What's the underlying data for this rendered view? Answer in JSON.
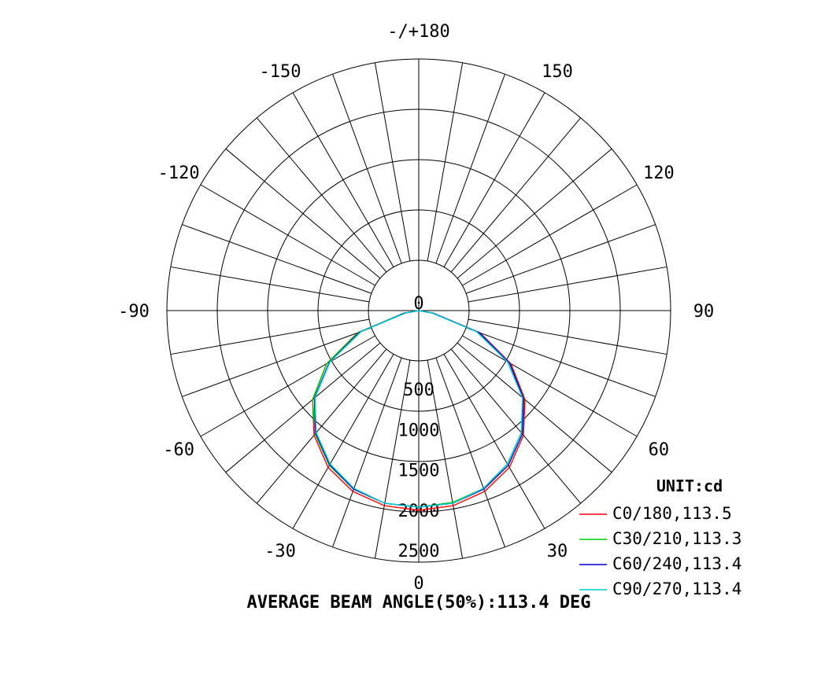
{
  "chart_data": {
    "type": "polar-line",
    "unit_label": "UNIT:cd",
    "footer": "AVERAGE BEAM ANGLE(50%):113.4 DEG",
    "angle_labels": [
      {
        "angle": 180,
        "text": "-/+180"
      },
      {
        "angle": -150,
        "text": "-150"
      },
      {
        "angle": 150,
        "text": "150"
      },
      {
        "angle": -120,
        "text": "-120"
      },
      {
        "angle": 120,
        "text": "120"
      },
      {
        "angle": -90,
        "text": "-90"
      },
      {
        "angle": 90,
        "text": "90"
      },
      {
        "angle": -60,
        "text": "-60"
      },
      {
        "angle": 60,
        "text": "60"
      },
      {
        "angle": -30,
        "text": "-30"
      },
      {
        "angle": 30,
        "text": "30"
      },
      {
        "angle": 0,
        "text": "0"
      }
    ],
    "radial_ticks": [
      "0",
      "500",
      "1000",
      "1500",
      "2000",
      "2500"
    ],
    "rmax": 2500,
    "series": [
      {
        "name": "C0/180,113.5",
        "color": "#ff0000",
        "angles": [
          -90,
          -80,
          -70,
          -60,
          -50,
          -40,
          -30,
          -20,
          -10,
          0,
          10,
          20,
          30,
          40,
          50,
          60,
          70,
          80,
          90
        ],
        "values": [
          0,
          170,
          810,
          1320,
          1720,
          2020,
          2250,
          2390,
          2460,
          2480,
          2460,
          2390,
          2250,
          2020,
          1720,
          1320,
          810,
          170,
          0
        ]
      },
      {
        "name": "C30/210,113.3",
        "color": "#00cc00",
        "angles": [
          -90,
          -80,
          -70,
          -60,
          -50,
          -40,
          -30,
          -20,
          -10,
          0,
          10,
          20,
          30,
          40,
          50,
          60,
          70,
          80,
          90
        ],
        "values": [
          0,
          190,
          800,
          1320,
          1720,
          2000,
          2220,
          2360,
          2430,
          2440,
          2420,
          2350,
          2200,
          1980,
          1690,
          1300,
          780,
          170,
          0
        ]
      },
      {
        "name": "C60/240,113.4",
        "color": "#0000cc",
        "angles": [
          -90,
          -80,
          -70,
          -60,
          -50,
          -40,
          -30,
          -20,
          -10,
          0,
          10,
          20,
          30,
          40,
          50,
          60,
          70,
          80,
          90
        ],
        "values": [
          0,
          180,
          780,
          1280,
          1690,
          1990,
          2210,
          2360,
          2430,
          2440,
          2430,
          2360,
          2220,
          2000,
          1700,
          1300,
          800,
          180,
          0
        ]
      },
      {
        "name": "C90/270,113.4",
        "color": "#00cccc",
        "angles": [
          -90,
          -80,
          -70,
          -60,
          -50,
          -40,
          -30,
          -20,
          -10,
          0,
          10,
          20,
          30,
          40,
          50,
          60,
          70,
          80,
          90
        ],
        "values": [
          0,
          160,
          760,
          1270,
          1680,
          1980,
          2200,
          2350,
          2430,
          2440,
          2430,
          2350,
          2200,
          1980,
          1680,
          1270,
          760,
          160,
          0
        ]
      }
    ]
  }
}
